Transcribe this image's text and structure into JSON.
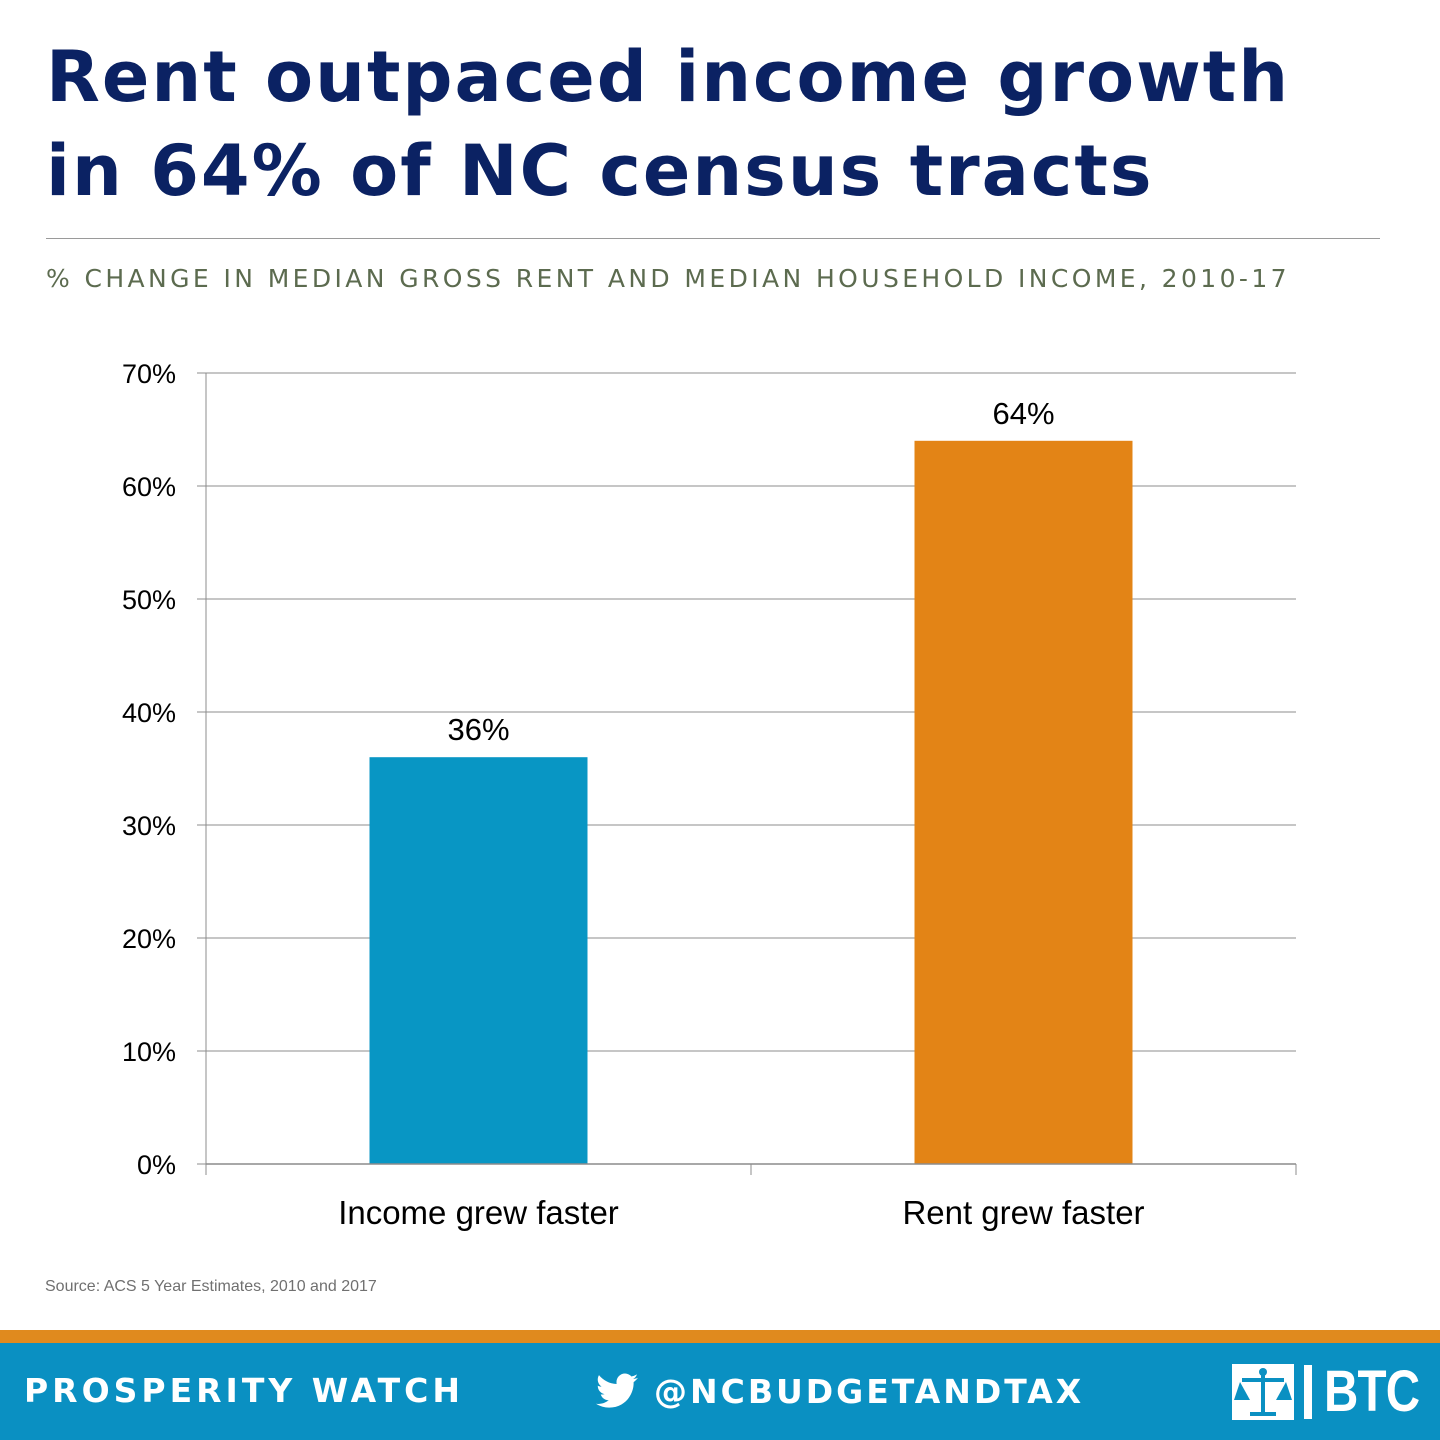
{
  "title": {
    "line1": "Rent outpaced income growth",
    "line2": "in 64% of NC census tracts"
  },
  "subtitle": "% CHANGE IN MEDIAN GROSS RENT AND MEDIAN HOUSEHOLD INCOME, 2010-17",
  "chart_data": {
    "type": "bar",
    "categories": [
      "Income grew faster",
      "Rent grew faster"
    ],
    "values": [
      36,
      64
    ],
    "value_labels": [
      "36%",
      "64%"
    ],
    "bar_colors": [
      "#0896c4",
      "#e38416"
    ],
    "ylim": [
      0,
      70
    ],
    "yticks": [
      0,
      10,
      20,
      30,
      40,
      50,
      60,
      70
    ],
    "ytick_labels": [
      "0%",
      "10%",
      "20%",
      "30%",
      "40%",
      "50%",
      "60%",
      "70%"
    ],
    "grid": true,
    "legend": "none"
  },
  "source": "Source: ACS 5 Year Estimates, 2010 and 2017",
  "footer": {
    "left": "PROSPERITY WATCH",
    "handle": "@NCBUDGETANDTAX",
    "logo_text": "BTC",
    "icon_twitter": "twitter-bird-icon",
    "icon_logo": "scales-of-justice-icon",
    "colors": {
      "band": "#e08a1e",
      "bar": "#0a90c2"
    }
  },
  "colors": {
    "title": "#0b2263",
    "subtitle": "#5c6b4f"
  }
}
